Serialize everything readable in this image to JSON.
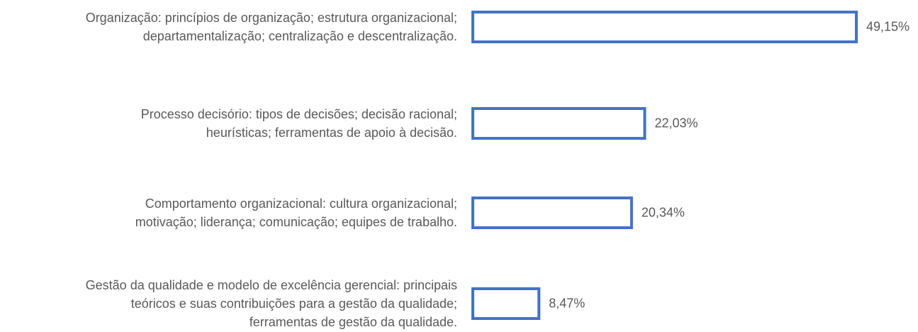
{
  "chart_data": {
    "type": "bar",
    "orientation": "horizontal",
    "categories": [
      "Organização: princípios de organização; estrutura organizacional;\ndepartamentalização; centralização e descentralização.",
      "Processo decisório: tipos de decisões; decisão racional;\nheurísticas; ferramentas de apoio à decisão.",
      "Comportamento organizacional: cultura organizacional;\nmotivação; liderança; comunicação; equipes de trabalho.",
      "Gestão da qualidade e modelo de excelência gerencial: principais\nteóricos e suas contribuições para a gestão da qualidade;\nferramentas de gestão da qualidade."
    ],
    "values": [
      49.15,
      22.03,
      20.34,
      8.47
    ],
    "value_labels": [
      "49,15%",
      "22,03%",
      "20,34%",
      "8,47%"
    ],
    "color": "#4472c4"
  }
}
